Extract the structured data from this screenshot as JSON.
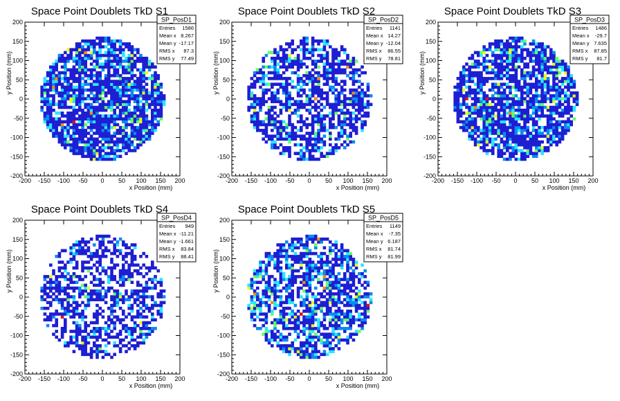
{
  "color_scale": [
    "#1e1ed2",
    "#0a8cf0",
    "#28e6ff",
    "#64ff64",
    "#e6ff14",
    "#ff8c00",
    "#dc1414"
  ],
  "chart_data": [
    {
      "type": "heatmap",
      "title": "Space Point Doublets TkD S1",
      "xlabel": "x Position (mm)",
      "ylabel": "y Position (mm)",
      "xlim": [
        -200,
        200
      ],
      "ylim": [
        -200,
        200
      ],
      "xticks": [
        -200,
        -150,
        -100,
        -50,
        0,
        50,
        100,
        150,
        200
      ],
      "yticks": [
        -200,
        -150,
        -100,
        -50,
        0,
        50,
        100,
        150,
        200
      ],
      "data_region_radius": 160,
      "bin_width": 7.5,
      "stats": {
        "name": "SP_PosD1",
        "rows": [
          {
            "label": "Entries",
            "value": "1586"
          },
          {
            "label": "Mean x",
            "value": "8.267"
          },
          {
            "label": "Mean y",
            "value": "-17.17"
          },
          {
            "label": "RMS x",
            "value": "87.3"
          },
          {
            "label": "RMS y",
            "value": "77.49"
          }
        ]
      },
      "fill_fraction": 0.8,
      "hot_fraction": 0.3,
      "seed": 11
    },
    {
      "type": "heatmap",
      "title": "Space Point Doublets TkD S2",
      "xlabel": "x Position (mm)",
      "ylabel": "y Position (mm)",
      "xlim": [
        -200,
        200
      ],
      "ylim": [
        -200,
        200
      ],
      "xticks": [
        -200,
        -150,
        -100,
        -50,
        0,
        50,
        100,
        150,
        200
      ],
      "yticks": [
        -200,
        -150,
        -100,
        -50,
        0,
        50,
        100,
        150,
        200
      ],
      "data_region_radius": 160,
      "bin_width": 7.5,
      "stats": {
        "name": "SP_PosD2",
        "rows": [
          {
            "label": "Entries",
            "value": "1141"
          },
          {
            "label": "Mean x",
            "value": "14.27"
          },
          {
            "label": "Mean y",
            "value": "-12.04"
          },
          {
            "label": "RMS x",
            "value": "86.55"
          },
          {
            "label": "RMS y",
            "value": "78.81"
          }
        ]
      },
      "fill_fraction": 0.6,
      "hot_fraction": 0.22,
      "seed": 23
    },
    {
      "type": "heatmap",
      "title": "Space Point Doublets TkD S3",
      "xlabel": "x Position (mm)",
      "ylabel": "y Position (mm)",
      "xlim": [
        -200,
        200
      ],
      "ylim": [
        -200,
        200
      ],
      "xticks": [
        -200,
        -150,
        -100,
        -50,
        0,
        50,
        100,
        150,
        200
      ],
      "yticks": [
        -200,
        -150,
        -100,
        -50,
        0,
        50,
        100,
        150,
        200
      ],
      "data_region_radius": 160,
      "bin_width": 7.5,
      "stats": {
        "name": "SP_PosD3",
        "rows": [
          {
            "label": "Entries",
            "value": "1486"
          },
          {
            "label": "Mean x",
            "value": "-29.7"
          },
          {
            "label": "Mean y",
            "value": "7.635"
          },
          {
            "label": "RMS x",
            "value": "87.85"
          },
          {
            "label": "RMS y",
            "value": "81.7"
          }
        ]
      },
      "fill_fraction": 0.76,
      "hot_fraction": 0.28,
      "seed": 37
    },
    {
      "type": "heatmap",
      "title": "Space Point Doublets TkD S4",
      "xlabel": "x Position (mm)",
      "ylabel": "y Position (mm)",
      "xlim": [
        -200,
        200
      ],
      "ylim": [
        -200,
        200
      ],
      "xticks": [
        -200,
        -150,
        -100,
        -50,
        0,
        50,
        100,
        150,
        200
      ],
      "yticks": [
        -200,
        -150,
        -100,
        -50,
        0,
        50,
        100,
        150,
        200
      ],
      "data_region_radius": 160,
      "bin_width": 7.5,
      "stats": {
        "name": "SP_PosD4",
        "rows": [
          {
            "label": "Entries",
            "value": "949"
          },
          {
            "label": "Mean x",
            "value": "-11.21"
          },
          {
            "label": "Mean y",
            "value": "-1.661"
          },
          {
            "label": "RMS x",
            "value": "83.84"
          },
          {
            "label": "RMS y",
            "value": "88.41"
          }
        ]
      },
      "fill_fraction": 0.5,
      "hot_fraction": 0.2,
      "seed": 53
    },
    {
      "type": "heatmap",
      "title": "Space Point Doublets TkD S5",
      "xlabel": "x Position (mm)",
      "ylabel": "y Position (mm)",
      "xlim": [
        -200,
        200
      ],
      "ylim": [
        -200,
        200
      ],
      "xticks": [
        -200,
        -150,
        -100,
        -50,
        0,
        50,
        100,
        150,
        200
      ],
      "yticks": [
        -200,
        -150,
        -100,
        -50,
        0,
        50,
        100,
        150,
        200
      ],
      "data_region_radius": 160,
      "bin_width": 7.5,
      "stats": {
        "name": "SP_PosD5",
        "rows": [
          {
            "label": "Entries",
            "value": "1149"
          },
          {
            "label": "Mean x",
            "value": "-7.35"
          },
          {
            "label": "Mean y",
            "value": "6.187"
          },
          {
            "label": "RMS x",
            "value": "81.74"
          },
          {
            "label": "RMS y",
            "value": "81.99"
          }
        ]
      },
      "fill_fraction": 0.62,
      "hot_fraction": 0.4,
      "seed": 71
    }
  ]
}
